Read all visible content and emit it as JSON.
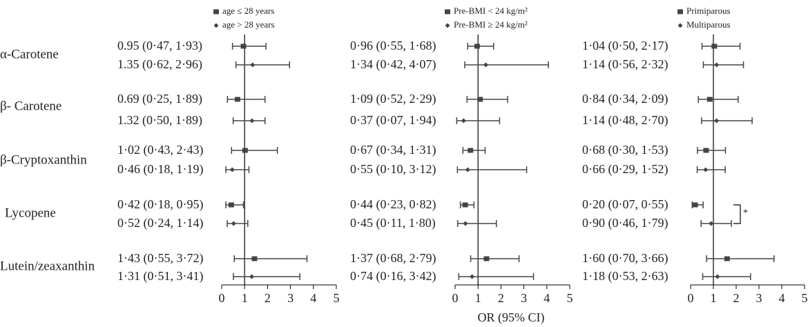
{
  "chart_data": {
    "type": "forest",
    "x_label": "OR (95% CI)",
    "categories": [
      "α-Carotene",
      "β- Carotene",
      "β-Cryptoxanthin",
      "Lycopene",
      "Lutein/zeaxanthin"
    ],
    "color": "#444444",
    "panels": [
      {
        "xlim": [
          0,
          5
        ],
        "xticks": [
          0,
          1,
          2,
          3,
          4,
          5
        ],
        "reference": 1,
        "series": [
          {
            "name": "age ≤  28 years",
            "marker": "square",
            "values": [
              0.95,
              0.69,
              1.02,
              0.42,
              1.43
            ],
            "lower": [
              0.47,
              0.25,
              0.43,
              0.18,
              0.55
            ],
            "upper": [
              1.93,
              1.89,
              2.43,
              0.95,
              3.72
            ],
            "value_labels": [
              "0.95 (0·47, 1·93)",
              "0.69 (0·25, 1·89)",
              "1·02 (0·43, 2·43)",
              "0·42 (0·18, 0·95)",
              "1·43 (0·55, 3·72)"
            ]
          },
          {
            "name": "age > 28 years",
            "marker": "diamond",
            "values": [
              1.35,
              1.32,
              0.46,
              0.52,
              1.31
            ],
            "lower": [
              0.62,
              0.5,
              0.18,
              0.24,
              0.51
            ],
            "upper": [
              2.96,
              1.89,
              1.19,
              1.14,
              3.41
            ],
            "value_labels": [
              "1.35 (0·62, 2·96)",
              "1.32 (0·50, 1·89)",
              "0·46 (0·18, 1·19)",
              "0·52 (0·24, 1·14)",
              "1·31 (0·51, 3·41)"
            ]
          }
        ]
      },
      {
        "xlim": [
          0,
          5
        ],
        "xticks": [
          0,
          1,
          2,
          3,
          4,
          5
        ],
        "reference": 1,
        "series": [
          {
            "name": "Pre-BMI < 24 kg/m²",
            "marker": "square",
            "values": [
              0.96,
              1.09,
              0.67,
              0.44,
              1.37
            ],
            "lower": [
              0.55,
              0.52,
              0.34,
              0.23,
              0.68
            ],
            "upper": [
              1.68,
              2.29,
              1.31,
              0.82,
              2.79
            ],
            "value_labels": [
              "0·96 (0·55, 1·68)",
              "1·09 (0·52, 2·29)",
              "0·67 (0·34, 1·31)",
              "0·44 (0·23, 0·82)",
              "1·37 (0·68, 2·79)"
            ]
          },
          {
            "name": "Pre-BMI ≥ 24 kg/m²",
            "marker": "diamond",
            "values": [
              1.34,
              0.37,
              0.55,
              0.45,
              0.74
            ],
            "lower": [
              0.42,
              0.07,
              0.1,
              0.11,
              0.16
            ],
            "upper": [
              4.07,
              1.94,
              3.12,
              1.8,
              3.42
            ],
            "value_labels": [
              "1·34 (0·42, 4·07)",
              "0·37 (0·07, 1·94)",
              "0·55 (0·10, 3·12)",
              "0·45 (0·11, 1·80)",
              "0·74 (0·16, 3·42)"
            ]
          }
        ]
      },
      {
        "xlim": [
          0,
          5
        ],
        "xticks": [
          0,
          1,
          2,
          3,
          4,
          5
        ],
        "reference": 1,
        "annotation": {
          "text": "*",
          "category": "Lycopene"
        },
        "series": [
          {
            "name": "Primiparous",
            "marker": "square",
            "values": [
              1.04,
              0.84,
              0.68,
              0.2,
              1.6
            ],
            "lower": [
              0.5,
              0.34,
              0.3,
              0.07,
              0.7
            ],
            "upper": [
              2.17,
              2.09,
              1.53,
              0.55,
              3.66
            ],
            "value_labels": [
              "1·04 (0·50, 2·17)",
              "0·84 (0·34, 2·09)",
              "0·68 (0·30, 1·53)",
              "0·20 (0·07, 0·55)",
              "1·60 (0·70, 3·66)"
            ]
          },
          {
            "name": "Multiparous",
            "marker": "diamond",
            "values": [
              1.14,
              1.14,
              0.66,
              0.9,
              1.18
            ],
            "lower": [
              0.56,
              0.48,
              0.29,
              0.46,
              0.53
            ],
            "upper": [
              2.32,
              2.7,
              1.52,
              1.79,
              2.63
            ],
            "value_labels": [
              "1·14 (0·56, 2·32)",
              "1·14 (0·48, 2·70)",
              "0·66 (0·29, 1·52)",
              "0·90 (0·46, 1·79)",
              "1·18 (0·53, 2·63)"
            ]
          }
        ]
      }
    ]
  }
}
